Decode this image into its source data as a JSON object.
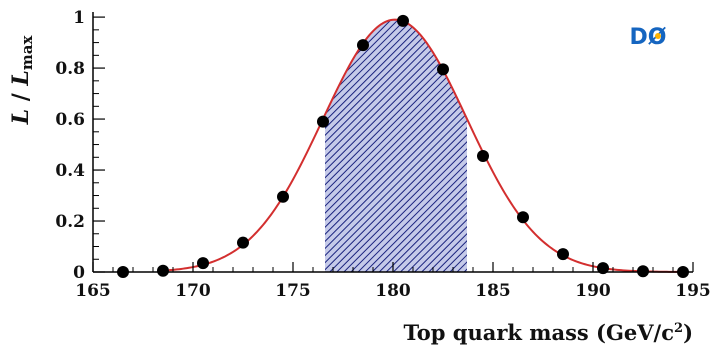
{
  "chart_data": {
    "type": "scatter",
    "xlabel": "Top quark mass (GeV/c",
    "xlabel_sup": "2",
    "xlabel_close": ")",
    "ylabel_L1": "L",
    "ylabel_sep": " / ",
    "ylabel_L2": "L",
    "ylabel_sub": "max",
    "xlim": [
      165,
      195
    ],
    "ylim": [
      0,
      1.02
    ],
    "x_ticks": [
      165,
      170,
      175,
      180,
      185,
      190,
      195
    ],
    "y_ticks": [
      0,
      0.2,
      0.4,
      0.6,
      0.8,
      1
    ],
    "y_tick_labels": [
      "0",
      "0.2",
      "0.4",
      "0.6",
      "0.8",
      "1"
    ],
    "series": [
      {
        "type": "scatter",
        "points": [
          {
            "x": 166.5,
            "y": 0.0
          },
          {
            "x": 168.5,
            "y": 0.005
          },
          {
            "x": 170.5,
            "y": 0.035
          },
          {
            "x": 172.5,
            "y": 0.115
          },
          {
            "x": 174.5,
            "y": 0.295
          },
          {
            "x": 176.5,
            "y": 0.59
          },
          {
            "x": 178.5,
            "y": 0.89
          },
          {
            "x": 180.5,
            "y": 0.985
          },
          {
            "x": 182.5,
            "y": 0.795
          },
          {
            "x": 184.5,
            "y": 0.455
          },
          {
            "x": 186.5,
            "y": 0.215
          },
          {
            "x": 188.5,
            "y": 0.07
          },
          {
            "x": 190.5,
            "y": 0.015
          },
          {
            "x": 192.5,
            "y": 0.003
          },
          {
            "x": 194.5,
            "y": 0.0
          }
        ]
      },
      {
        "type": "line",
        "fit": "gaussian",
        "mean": 180.1,
        "sigma": 3.6,
        "amplitude": 0.99
      }
    ],
    "shaded_interval": [
      176.6,
      183.7
    ],
    "colors": {
      "fit_line": "#d32f2f",
      "markers": "#000000",
      "hatch": "#1a237e",
      "hatch_bg": "#c5cae9"
    },
    "logo": {
      "text": "DØ",
      "colors": {
        "text": "#1565c0",
        "star": "#ffb300"
      }
    }
  }
}
